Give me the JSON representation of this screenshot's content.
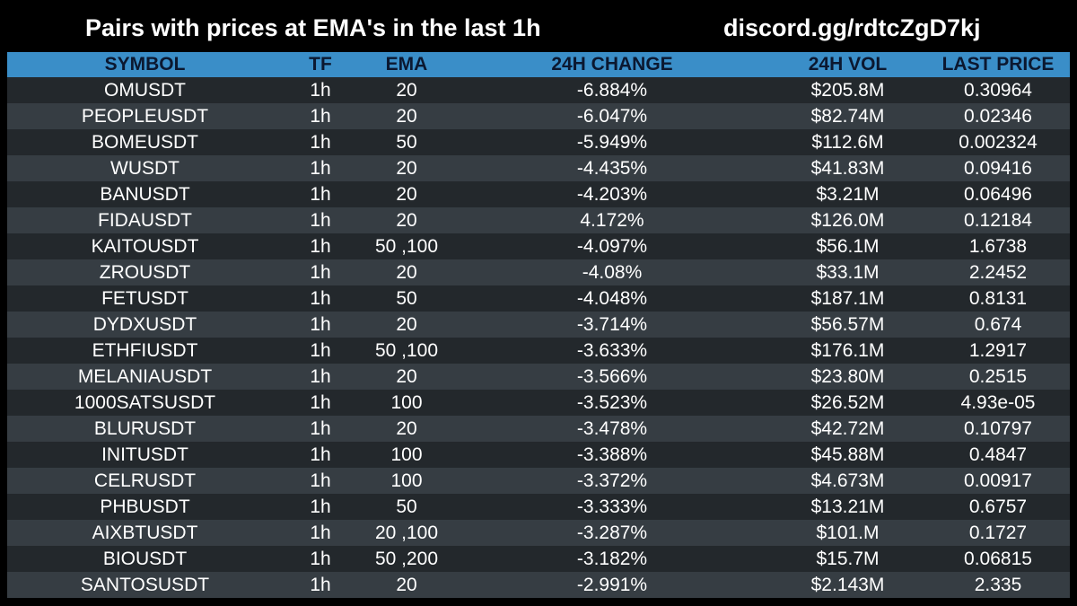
{
  "header": {
    "title": "Pairs with prices at EMA's in the last 1h",
    "link": "discord.gg/rdtcZgD7kj"
  },
  "table": {
    "columns": [
      "SYMBOL",
      "TF",
      "EMA",
      "24H CHANGE",
      "24H VOL",
      "LAST PRICE"
    ],
    "rows": [
      [
        "OMUSDT",
        "1h",
        "20",
        "-6.884%",
        "$205.8M",
        "0.30964"
      ],
      [
        "PEOPLEUSDT",
        "1h",
        "20",
        "-6.047%",
        "$82.74M",
        "0.02346"
      ],
      [
        "BOMEUSDT",
        "1h",
        "50",
        "-5.949%",
        "$112.6M",
        "0.002324"
      ],
      [
        "WUSDT",
        "1h",
        "20",
        "-4.435%",
        "$41.83M",
        "0.09416"
      ],
      [
        "BANUSDT",
        "1h",
        "20",
        "-4.203%",
        "$3.21M",
        "0.06496"
      ],
      [
        "FIDAUSDT",
        "1h",
        "20",
        "4.172%",
        "$126.0M",
        "0.12184"
      ],
      [
        "KAITOUSDT",
        "1h",
        "50 ,100",
        "-4.097%",
        "$56.1M",
        "1.6738"
      ],
      [
        "ZROUSDT",
        "1h",
        "20",
        "-4.08%",
        "$33.1M",
        "2.2452"
      ],
      [
        "FETUSDT",
        "1h",
        "50",
        "-4.048%",
        "$187.1M",
        "0.8131"
      ],
      [
        "DYDXUSDT",
        "1h",
        "20",
        "-3.714%",
        "$56.57M",
        "0.674"
      ],
      [
        "ETHFIUSDT",
        "1h",
        "50 ,100",
        "-3.633%",
        "$176.1M",
        "1.2917"
      ],
      [
        "MELANIAUSDT",
        "1h",
        "20",
        "-3.566%",
        "$23.80M",
        "0.2515"
      ],
      [
        "1000SATSUSDT",
        "1h",
        "100",
        "-3.523%",
        "$26.52M",
        "4.93e-05"
      ],
      [
        "BLURUSDT",
        "1h",
        "20",
        "-3.478%",
        "$42.72M",
        "0.10797"
      ],
      [
        "INITUSDT",
        "1h",
        "100",
        "-3.388%",
        "$45.88M",
        "0.4847"
      ],
      [
        "CELRUSDT",
        "1h",
        "100",
        "-3.372%",
        "$4.673M",
        "0.00917"
      ],
      [
        "PHBUSDT",
        "1h",
        "50",
        "-3.333%",
        "$13.21M",
        "0.6757"
      ],
      [
        "AIXBTUSDT",
        "1h",
        "20 ,100",
        "-3.287%",
        "$101.M",
        "0.1727"
      ],
      [
        "BIOUSDT",
        "1h",
        "50 ,200",
        "-3.182%",
        "$15.7M",
        "0.06815"
      ],
      [
        "SANTOSUSDT",
        "1h",
        "20",
        "-2.991%",
        "$2.143M",
        "2.335"
      ]
    ]
  },
  "colors": {
    "background": "#000000",
    "header_row": "#3a8ec8",
    "header_text": "#0b1830",
    "row_dark": "#23282c",
    "row_light": "#363d43",
    "text": "#ffffff"
  }
}
